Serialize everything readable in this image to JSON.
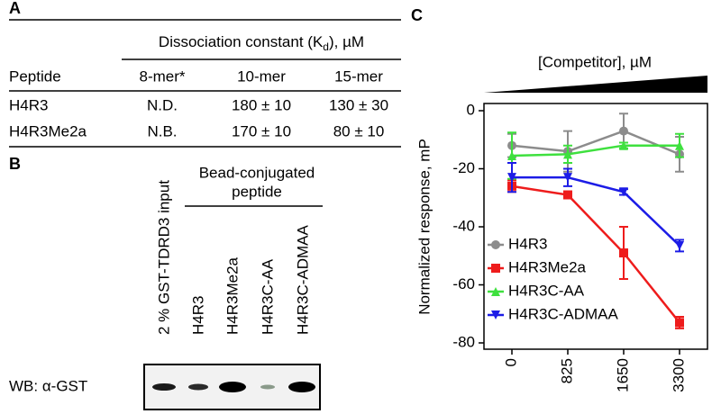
{
  "panel_a": {
    "label": "A",
    "header": {
      "prefix": "Dissociation constant (K",
      "subscript": "d",
      "suffix": "), µM"
    },
    "columns": [
      "Peptide",
      "8-mer*",
      "10-mer",
      "15-mer"
    ],
    "rows": [
      [
        "H4R3",
        "N.D.",
        "180 ± 10",
        "130 ± 30"
      ],
      [
        "H4R3Me2a",
        "N.B.",
        "170 ± 10",
        "80 ± 10"
      ]
    ]
  },
  "panel_b": {
    "label": "B",
    "input_label": "2 % GST-TDRD3 input",
    "group_label": [
      "Bead-conjugated",
      "peptide"
    ],
    "lanes": [
      "H4R3",
      "H4R3Me2a",
      "H4R3C-AA",
      "H4R3C-ADMAA"
    ],
    "blot_label": "WB: α-GST"
  },
  "panel_c_label": "C",
  "chart_data": {
    "type": "line",
    "title": "[Competitor], µM",
    "y_label": "Normalized response, mP",
    "categories": [
      "0",
      "825",
      "1650",
      "3300"
    ],
    "ylim": [
      -80,
      0
    ],
    "yticks": [
      0,
      -20,
      -40,
      -60,
      -80
    ],
    "series": [
      {
        "name": "H4R3",
        "color": "#8c8c8c",
        "marker": "circle",
        "values": [
          -12,
          -14,
          -7,
          -15
        ],
        "errors": [
          4,
          7,
          6,
          6
        ]
      },
      {
        "name": "H4R3Me2a",
        "color": "#ee1c1c",
        "marker": "square",
        "values": [
          -26,
          -29,
          -49,
          -73
        ],
        "errors": [
          2,
          1,
          9,
          2
        ]
      },
      {
        "name": "H4R3C-AA",
        "color": "#3ee03e",
        "marker": "triangle-up",
        "values": [
          -15.5,
          -15,
          -12,
          -12
        ],
        "errors": [
          8,
          3,
          1,
          4
        ]
      },
      {
        "name": "H4R3C-ADMAA",
        "color": "#1c1ce6",
        "marker": "triangle-down",
        "values": [
          -23,
          -23,
          -28,
          -46.5
        ],
        "errors": [
          5,
          3,
          1,
          2
        ]
      }
    ]
  }
}
